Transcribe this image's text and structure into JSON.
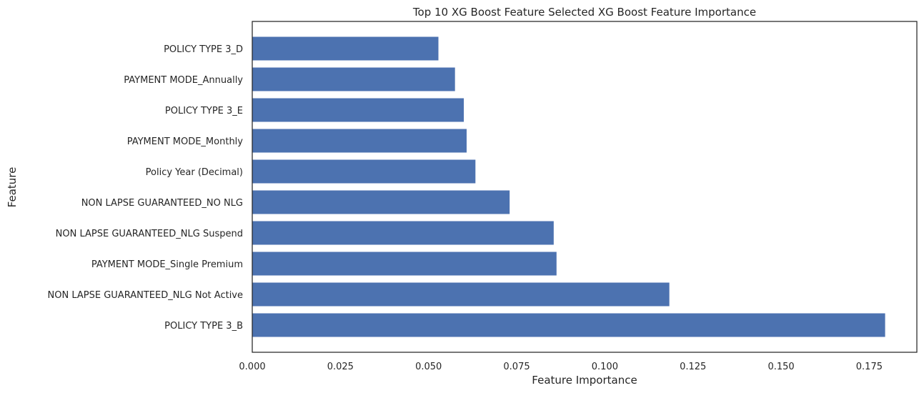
{
  "chart_data": {
    "type": "bar",
    "orientation": "horizontal",
    "title": "Top 10 XG Boost Feature Selected XG Boost Feature Importance",
    "xlabel": "Feature Importance",
    "ylabel": "Feature",
    "xlim": [
      0,
      0.1885
    ],
    "xticks": [
      "0.000",
      "0.025",
      "0.050",
      "0.075",
      "0.100",
      "0.125",
      "0.150",
      "0.175"
    ],
    "grid": false,
    "bar_color": "#4c72b0",
    "categories": [
      "POLICY TYPE 3_D",
      "PAYMENT MODE_Annually",
      "POLICY TYPE 3_E",
      "PAYMENT MODE_Monthly",
      "Policy Year (Decimal)",
      "NON LAPSE GUARANTEED_NO NLG",
      "NON LAPSE GUARANTEED_NLG Suspend",
      "PAYMENT MODE_Single Premium",
      "NON LAPSE GUARANTEED_NLG Not Active",
      "POLICY TYPE 3_B"
    ],
    "values": [
      0.0528,
      0.0575,
      0.06,
      0.0608,
      0.0633,
      0.073,
      0.0855,
      0.0863,
      0.1183,
      0.1795
    ]
  }
}
